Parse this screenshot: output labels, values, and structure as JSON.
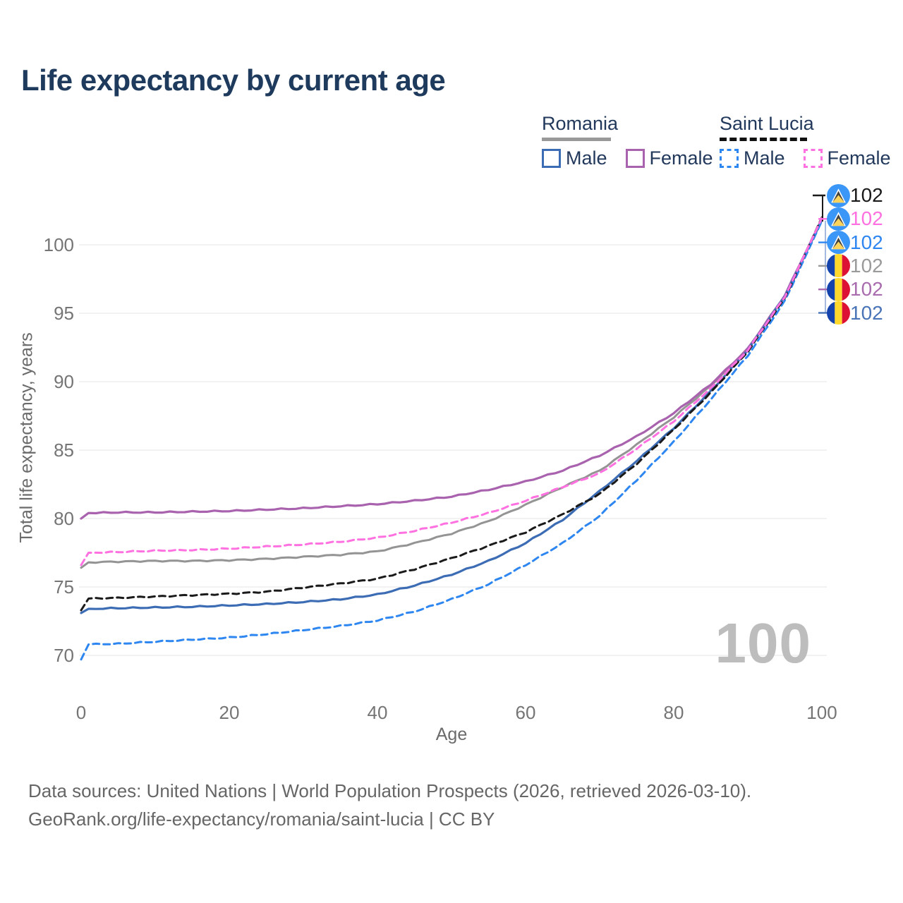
{
  "title": "Life expectancy by current age",
  "legend": {
    "groups": [
      {
        "id": "romania",
        "label": "Romania",
        "underline_style": "solid",
        "underline_color": "#999999",
        "items": [
          {
            "label": "Male",
            "series": "romania_male",
            "dashed": false
          },
          {
            "label": "Female",
            "series": "romania_female",
            "dashed": false
          }
        ]
      },
      {
        "id": "saint_lucia",
        "label": "Saint Lucia",
        "underline_style": "dashed",
        "underline_color": "#111111",
        "items": [
          {
            "label": "Male",
            "series": "saint_lucia_male",
            "dashed": true
          },
          {
            "label": "Female",
            "series": "saint_lucia_female",
            "dashed": true
          }
        ]
      }
    ]
  },
  "colors": {
    "romania_male": "#3c6cb4",
    "romania_female": "#a962ae",
    "romania_total": "#949494",
    "saint_lucia_male": "#2e86f0",
    "saint_lucia_female": "#ff70e0",
    "saint_lucia_total": "#1a1a1a",
    "title_text": "#1e3a5c",
    "axis_text": "#757575",
    "grid": "#e9e9e9",
    "watermark": "#bdbdbd",
    "leader_bracket": "#8fa8d8"
  },
  "watermark": "100",
  "x_axis_title": "Age",
  "y_axis_title": "Total life expectancy, years",
  "footer_line1": "Data sources: United Nations | World Population Prospects (2026, retrieved 2026-03-10).",
  "footer_line2": "GeoRank.org/life-expectancy/romania/saint-lucia | CC BY",
  "end_labels": [
    {
      "flag": "saint-lucia",
      "series": "saint_lucia_total",
      "value": "102",
      "color": "#1a1a1a"
    },
    {
      "flag": "saint-lucia",
      "series": "saint_lucia_female",
      "value": "102",
      "color": "#ff70e0"
    },
    {
      "flag": "saint-lucia",
      "series": "saint_lucia_male",
      "value": "102",
      "color": "#2e86f0"
    },
    {
      "flag": "romania",
      "series": "romania_total",
      "value": "102",
      "color": "#9a9a9a"
    },
    {
      "flag": "romania",
      "series": "romania_female",
      "value": "102",
      "color": "#a96cae"
    },
    {
      "flag": "romania",
      "series": "romania_male",
      "value": "102",
      "color": "#4a74b8"
    }
  ],
  "chart_data": {
    "type": "line",
    "title": "Life expectancy by current age",
    "xlabel": "Age",
    "ylabel": "Total life expectancy, years",
    "x_ticks": [
      0,
      20,
      40,
      60,
      80,
      100
    ],
    "y_ticks": [
      70,
      75,
      80,
      85,
      90,
      95,
      100
    ],
    "xlim": [
      0,
      100
    ],
    "ylim": [
      68.5,
      103
    ],
    "grid": "horizontal",
    "legend_position": "top-right",
    "x": [
      0,
      1,
      5,
      10,
      15,
      20,
      25,
      30,
      35,
      40,
      45,
      50,
      55,
      60,
      65,
      70,
      75,
      80,
      85,
      90,
      95,
      100
    ],
    "series": [
      {
        "id": "romania_total",
        "name": "Romania — Total",
        "color": "#949494",
        "dash": null,
        "width": 3,
        "values": [
          76.4,
          76.8,
          76.85,
          76.9,
          76.9,
          76.95,
          77.05,
          77.2,
          77.35,
          77.6,
          78.2,
          78.9,
          79.8,
          81.0,
          82.3,
          83.5,
          85.4,
          87.4,
          89.7,
          92.4,
          96.3,
          101.85
        ]
      },
      {
        "id": "romania_female",
        "name": "Romania — Female",
        "color": "#a962ae",
        "dash": null,
        "width": 3.2,
        "values": [
          80.0,
          80.4,
          80.45,
          80.45,
          80.5,
          80.55,
          80.65,
          80.75,
          80.9,
          81.05,
          81.3,
          81.6,
          82.1,
          82.7,
          83.5,
          84.6,
          86.0,
          87.7,
          89.8,
          92.4,
          96.3,
          101.9
        ]
      },
      {
        "id": "romania_male",
        "name": "Romania — Male",
        "color": "#3c6cb4",
        "dash": null,
        "width": 3.2,
        "values": [
          73.1,
          73.4,
          73.45,
          73.5,
          73.55,
          73.65,
          73.75,
          73.9,
          74.1,
          74.45,
          75.1,
          75.9,
          76.9,
          78.2,
          79.9,
          82.0,
          84.2,
          86.6,
          89.3,
          92.3,
          96.25,
          101.8
        ]
      },
      {
        "id": "saint_lucia_male",
        "name": "Saint Lucia — Male",
        "color": "#2e86f0",
        "dash": [
          9,
          6
        ],
        "width": 3,
        "values": [
          69.7,
          70.8,
          70.85,
          71.0,
          71.15,
          71.3,
          71.55,
          71.85,
          72.15,
          72.55,
          73.2,
          74.1,
          75.2,
          76.6,
          78.2,
          80.2,
          82.8,
          85.6,
          88.7,
          91.9,
          95.9,
          101.75
        ]
      },
      {
        "id": "saint_lucia_total",
        "name": "Saint Lucia — Total",
        "color": "#1a1a1a",
        "dash": [
          9,
          6
        ],
        "width": 3,
        "values": [
          73.3,
          74.15,
          74.2,
          74.3,
          74.4,
          74.5,
          74.65,
          74.95,
          75.25,
          75.6,
          76.3,
          77.1,
          78.0,
          79.0,
          80.3,
          81.8,
          84.0,
          86.5,
          89.2,
          92.2,
          96.1,
          102.0
        ]
      },
      {
        "id": "saint_lucia_female",
        "name": "Saint Lucia — Female",
        "color": "#ff70e0",
        "dash": [
          9,
          6
        ],
        "width": 3,
        "values": [
          76.6,
          77.5,
          77.55,
          77.65,
          77.7,
          77.8,
          77.95,
          78.1,
          78.3,
          78.6,
          79.1,
          79.7,
          80.4,
          81.3,
          82.3,
          83.3,
          85.1,
          87.1,
          89.5,
          92.3,
          96.2,
          101.95
        ]
      }
    ]
  }
}
